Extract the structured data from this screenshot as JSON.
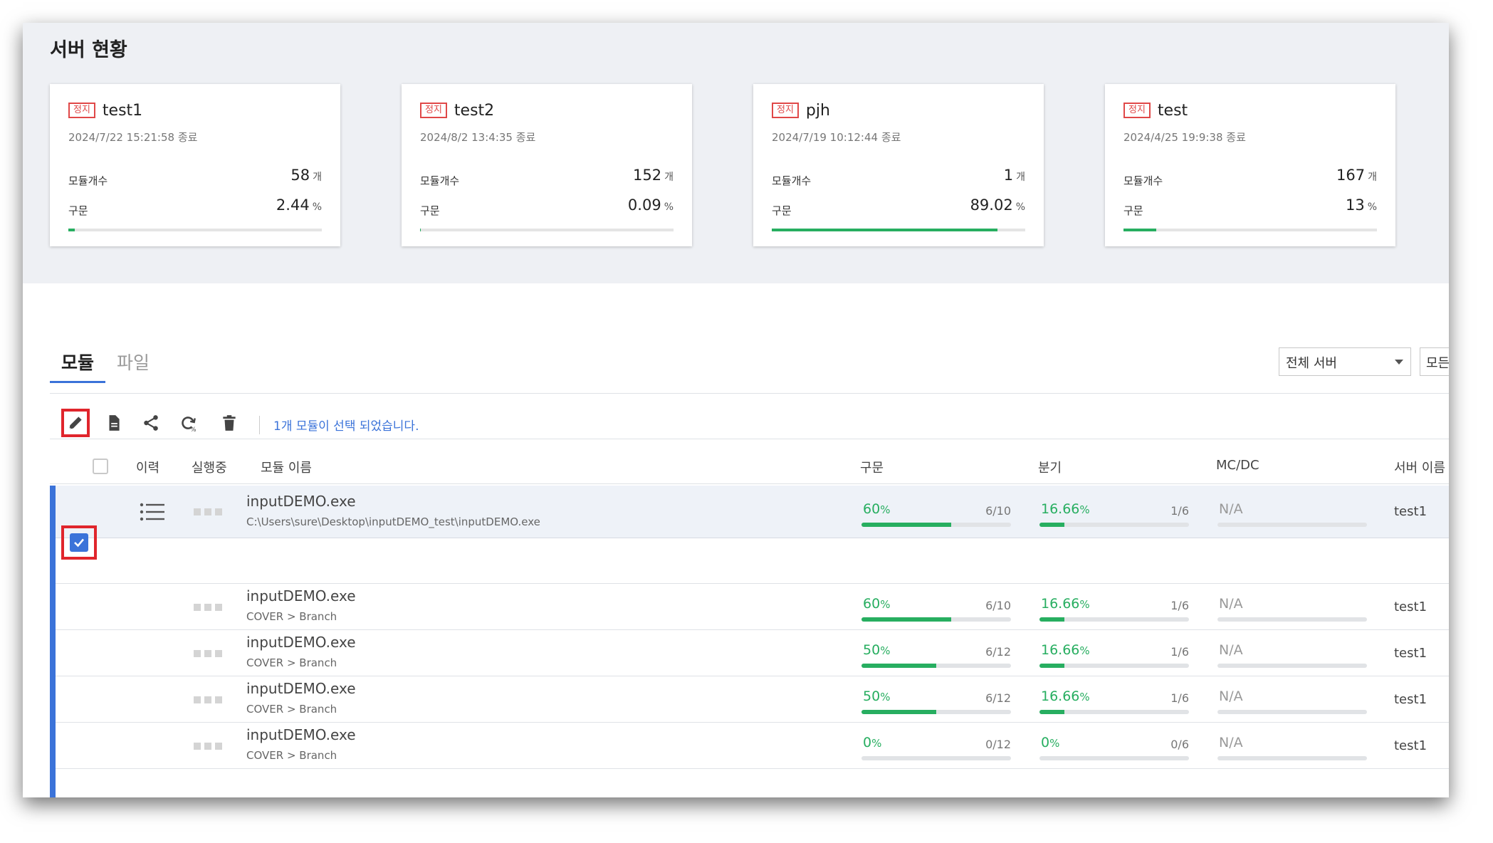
{
  "page": {
    "title": "서버 현황"
  },
  "servers": [
    {
      "status": "정지",
      "name": "test1",
      "time": "2024/7/22 15:21:58 종료",
      "module_label": "모듈개수",
      "module_count": "58",
      "module_unit": "개",
      "stmt_label": "구문",
      "stmt_value": "2.44",
      "stmt_unit": "%",
      "coverage_fraction": 0.0244
    },
    {
      "status": "정지",
      "name": "test2",
      "time": "2024/8/2 13:4:35 종료",
      "module_label": "모듈개수",
      "module_count": "152",
      "module_unit": "개",
      "stmt_label": "구문",
      "stmt_value": "0.09",
      "stmt_unit": "%",
      "coverage_fraction": 0.0009
    },
    {
      "status": "정지",
      "name": "pjh",
      "time": "2024/7/19 10:12:44 종료",
      "module_label": "모듈개수",
      "module_count": "1",
      "module_unit": "개",
      "stmt_label": "구문",
      "stmt_value": "89.02",
      "stmt_unit": "%",
      "coverage_fraction": 0.8902
    },
    {
      "status": "정지",
      "name": "test",
      "time": "2024/4/25 19:9:38 종료",
      "module_label": "모듈개수",
      "module_count": "167",
      "module_unit": "개",
      "stmt_label": "구문",
      "stmt_value": "13",
      "stmt_unit": "%",
      "coverage_fraction": 0.13
    }
  ],
  "tabs": [
    {
      "label": "모듈",
      "active": true
    },
    {
      "label": "파일",
      "active": false
    }
  ],
  "filters": {
    "server_select": "전체 서버",
    "second_select": "모든"
  },
  "toolbar": {
    "selection_message": "1개 모듈이 선택 되었습니다.",
    "icons": [
      "pencil-icon",
      "document-icon",
      "share-icon",
      "refresh-icon",
      "trash-icon"
    ]
  },
  "table": {
    "headers": {
      "history": "이력",
      "running": "실행중",
      "module_name": "모듈 이름",
      "statement": "구문",
      "branch": "분기",
      "mcdc": "MC/DC",
      "server_name": "서버 이름"
    },
    "selected_row": {
      "name": "inputDEMO.exe",
      "path": "C:\\Users\\sure\\Desktop\\inputDEMO_test\\inputDEMO.exe",
      "stmt_pct": "60",
      "stmt_frac": "6/10",
      "stmt_fraction": 0.6,
      "branch_pct": "16.66",
      "branch_frac": "1/6",
      "branch_fraction": 0.1666,
      "mcdc": "N/A",
      "server": "test1"
    },
    "child_rows": [
      {
        "name": "inputDEMO.exe",
        "sub": "COVER > Branch",
        "stmt_pct": "60",
        "stmt_frac": "6/10",
        "stmt_fraction": 0.6,
        "branch_pct": "16.66",
        "branch_frac": "1/6",
        "branch_fraction": 0.1666,
        "mcdc": "N/A",
        "server": "test1"
      },
      {
        "name": "inputDEMO.exe",
        "sub": "COVER > Branch",
        "stmt_pct": "50",
        "stmt_frac": "6/12",
        "stmt_fraction": 0.5,
        "branch_pct": "16.66",
        "branch_frac": "1/6",
        "branch_fraction": 0.1666,
        "mcdc": "N/A",
        "server": "test1"
      },
      {
        "name": "inputDEMO.exe",
        "sub": "COVER > Branch",
        "stmt_pct": "50",
        "stmt_frac": "6/12",
        "stmt_fraction": 0.5,
        "branch_pct": "16.66",
        "branch_frac": "1/6",
        "branch_fraction": 0.1666,
        "mcdc": "N/A",
        "server": "test1"
      },
      {
        "name": "inputDEMO.exe",
        "sub": "COVER > Branch",
        "stmt_pct": "0",
        "stmt_frac": "0/12",
        "stmt_fraction": 0.0,
        "branch_pct": "0",
        "branch_frac": "0/6",
        "branch_fraction": 0.0,
        "mcdc": "N/A",
        "server": "test1"
      }
    ],
    "percent_unit": "%"
  },
  "colors": {
    "accent": "#3b73d9",
    "success": "#27ae60",
    "stopped": "#e04848",
    "highlight": "#e0252c"
  }
}
